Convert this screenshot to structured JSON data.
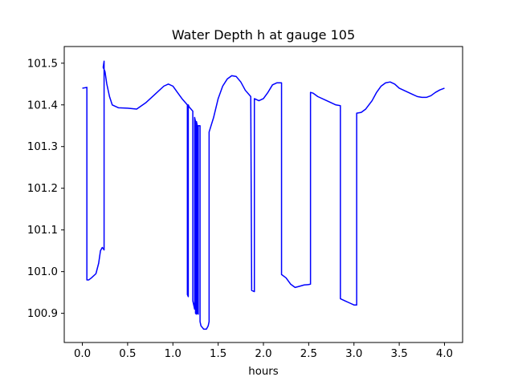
{
  "chart_data": {
    "type": "line",
    "title": "Water Depth h at gauge 105",
    "xlabel": "hours",
    "ylabel": "",
    "xlim": [
      -0.2,
      4.2
    ],
    "ylim": [
      100.83,
      101.54
    ],
    "xticks": [
      0.0,
      0.5,
      1.0,
      1.5,
      2.0,
      2.5,
      3.0,
      3.5,
      4.0
    ],
    "xtick_labels": [
      "0.0",
      "0.5",
      "1.0",
      "1.5",
      "2.0",
      "2.5",
      "3.0",
      "3.5",
      "4.0"
    ],
    "yticks": [
      100.9,
      101.0,
      101.1,
      101.2,
      101.3,
      101.4,
      101.5
    ],
    "ytick_labels": [
      "100.9",
      "101.0",
      "101.1",
      "101.2",
      "101.3",
      "101.4",
      "101.5"
    ],
    "grid": false,
    "legend": "none",
    "series": [
      {
        "color": "#0000ff",
        "x": [
          0.0,
          0.05,
          0.05,
          0.07,
          0.1,
          0.15,
          0.18,
          0.2,
          0.22,
          0.24,
          0.24,
          0.23,
          0.25,
          0.27,
          0.3,
          0.33,
          0.4,
          0.5,
          0.6,
          0.7,
          0.8,
          0.9,
          0.95,
          1.0,
          1.05,
          1.1,
          1.16,
          1.16,
          1.17,
          1.17,
          1.18,
          1.2,
          1.22,
          1.22,
          1.23,
          1.24,
          1.24,
          1.25,
          1.25,
          1.26,
          1.26,
          1.27,
          1.27,
          1.28,
          1.28,
          1.3,
          1.3,
          1.31,
          1.34,
          1.37,
          1.39,
          1.4,
          1.4,
          1.45,
          1.5,
          1.55,
          1.6,
          1.65,
          1.7,
          1.75,
          1.8,
          1.86,
          1.87,
          1.87,
          1.9,
          1.9,
          1.95,
          2.0,
          2.05,
          2.1,
          2.15,
          2.2,
          2.2,
          2.25,
          2.3,
          2.35,
          2.4,
          2.45,
          2.5,
          2.52,
          2.52,
          2.55,
          2.6,
          2.7,
          2.8,
          2.85,
          2.85,
          2.9,
          2.95,
          3.0,
          3.03,
          3.03,
          3.08,
          3.13,
          3.2,
          3.25,
          3.3,
          3.35,
          3.4,
          3.45,
          3.5,
          3.55,
          3.6,
          3.65,
          3.7,
          3.75,
          3.8,
          3.85,
          3.9,
          3.95,
          4.0
        ],
        "y": [
          101.44,
          101.442,
          100.98,
          100.98,
          100.985,
          100.995,
          101.02,
          101.05,
          101.058,
          101.052,
          101.505,
          101.49,
          101.48,
          101.45,
          101.42,
          101.4,
          101.393,
          101.392,
          101.39,
          101.405,
          101.425,
          101.445,
          101.45,
          101.445,
          101.43,
          101.415,
          101.4,
          100.945,
          100.94,
          101.4,
          101.395,
          101.39,
          101.385,
          100.93,
          100.92,
          100.91,
          101.37,
          101.36,
          100.9,
          100.898,
          101.36,
          101.35,
          100.9,
          100.898,
          101.35,
          101.35,
          100.88,
          100.87,
          100.862,
          100.862,
          100.87,
          100.88,
          101.335,
          101.37,
          101.415,
          101.445,
          101.462,
          101.47,
          101.468,
          101.455,
          101.435,
          101.42,
          100.96,
          100.955,
          100.952,
          101.415,
          101.41,
          101.415,
          101.43,
          101.448,
          101.453,
          101.453,
          100.993,
          100.985,
          100.97,
          100.962,
          100.965,
          100.968,
          100.969,
          100.97,
          101.43,
          101.428,
          101.42,
          101.41,
          101.4,
          101.398,
          100.935,
          100.93,
          100.925,
          100.92,
          100.92,
          101.38,
          101.382,
          101.39,
          101.41,
          101.43,
          101.445,
          101.453,
          101.455,
          101.45,
          101.44,
          101.435,
          101.43,
          101.425,
          101.42,
          101.418,
          101.418,
          101.422,
          101.43,
          101.436,
          101.44
        ]
      }
    ]
  }
}
